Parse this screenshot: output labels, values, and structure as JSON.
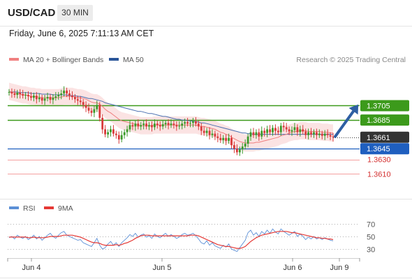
{
  "header": {
    "symbol": "USD/CAD",
    "timeframe": "30 MIN",
    "datetime": "Friday, June 6, 2025 7:11:13 AM CET"
  },
  "legend": {
    "ma20_label": "MA 20 + Bollinger Bands",
    "ma50_label": "MA 50",
    "ma20_color": "#f08080",
    "ma50_color": "#2a5599",
    "credit": "Research © 2025 Trading Central"
  },
  "rsi_legend": {
    "rsi_label": "RSI",
    "ma9_label": "9MA",
    "rsi_color": "#5b8fd6",
    "ma9_color": "#e53935"
  },
  "chart_data": [
    {
      "type": "candlestick",
      "title": "USD/CAD 30 MIN",
      "ylim": [
        1.3585,
        1.3755
      ],
      "current_price": 1.3661,
      "levels": [
        {
          "value": 1.3705,
          "label": "1.3705",
          "kind": "resistance",
          "color": "#3c9a1b"
        },
        {
          "value": 1.3685,
          "label": "1.3685",
          "kind": "resistance",
          "color": "#3c9a1b"
        },
        {
          "value": 1.3661,
          "label": "1.3661",
          "kind": "last",
          "color": "#333333"
        },
        {
          "value": 1.3645,
          "label": "1.3645",
          "kind": "pivot",
          "color": "#1f5fbf"
        },
        {
          "value": 1.363,
          "label": "1.3630",
          "kind": "support",
          "color": "#d32f2f"
        },
        {
          "value": 1.361,
          "label": "1.3610",
          "kind": "support",
          "color": "#d32f2f"
        }
      ],
      "x_ticks": [
        "Jun 4",
        "Jun 5",
        "Jun 6",
        "Jun 9"
      ],
      "closes": [
        1.3724,
        1.3722,
        1.372,
        1.3723,
        1.3721,
        1.3719,
        1.372,
        1.3718,
        1.3716,
        1.3719,
        1.3714,
        1.3716,
        1.3712,
        1.3715,
        1.3717,
        1.3713,
        1.3716,
        1.3718,
        1.372,
        1.3722,
        1.3726,
        1.3722,
        1.3719,
        1.3717,
        1.3714,
        1.3712,
        1.371,
        1.3706,
        1.3702,
        1.3698,
        1.3695,
        1.37,
        1.3706,
        1.3688,
        1.3672,
        1.3665,
        1.3668,
        1.3672,
        1.3666,
        1.3664,
        1.3658,
        1.3664,
        1.3668,
        1.3672,
        1.3678,
        1.3676,
        1.368,
        1.3676,
        1.3678,
        1.368,
        1.3676,
        1.3678,
        1.3675,
        1.368,
        1.3678,
        1.3676,
        1.3679,
        1.3681,
        1.3678,
        1.368,
        1.3678,
        1.3676,
        1.3677,
        1.368,
        1.3682,
        1.368,
        1.3681,
        1.3683,
        1.368,
        1.3676,
        1.367,
        1.3667,
        1.367,
        1.3664,
        1.3666,
        1.3662,
        1.366,
        1.3657,
        1.366,
        1.3656,
        1.366,
        1.365,
        1.3645,
        1.364,
        1.3644,
        1.3648,
        1.3652,
        1.3662,
        1.3668,
        1.3664,
        1.3668,
        1.3662,
        1.367,
        1.3667,
        1.3672,
        1.3668,
        1.3674,
        1.367,
        1.3668,
        1.3677,
        1.3675,
        1.3672,
        1.3669,
        1.3671,
        1.3675,
        1.3668,
        1.3672,
        1.3669,
        1.3664,
        1.3668,
        1.3665,
        1.3668,
        1.3664,
        1.3666,
        1.3663,
        1.3666,
        1.3664,
        1.3662,
        1.3661
      ],
      "ma20": [
        1.3725,
        1.3724,
        1.3723,
        1.3722,
        1.3721,
        1.372,
        1.372,
        1.3719,
        1.3718,
        1.3718,
        1.3717,
        1.3717,
        1.3716,
        1.3716,
        1.3716,
        1.3716,
        1.3716,
        1.3716,
        1.3716,
        1.3717,
        1.3718,
        1.3718,
        1.3718,
        1.3718,
        1.3717,
        1.3716,
        1.3716,
        1.3715,
        1.3714,
        1.3712,
        1.371,
        1.3709,
        1.3709,
        1.3707,
        1.3704,
        1.37,
        1.3697,
        1.3695,
        1.3692,
        1.3689,
        1.3686,
        1.3684,
        1.3683,
        1.3682,
        1.3681,
        1.368,
        1.3679,
        1.3678,
        1.3677,
        1.3677,
        1.3677,
        1.3677,
        1.3677,
        1.3678,
        1.3678,
        1.3678,
        1.3678,
        1.3678,
        1.3678,
        1.3678,
        1.3678,
        1.3678,
        1.3678,
        1.3678,
        1.3678,
        1.3678,
        1.3678,
        1.3678,
        1.3678,
        1.3677,
        1.3676,
        1.3676,
        1.3675,
        1.3674,
        1.3673,
        1.3672,
        1.367,
        1.3668,
        1.3667,
        1.3665,
        1.3664,
        1.3661,
        1.3659,
        1.3657,
        1.3655,
        1.3654,
        1.3653,
        1.3653,
        1.3653,
        1.3653,
        1.3654,
        1.3654,
        1.3655,
        1.3656,
        1.3657,
        1.3658,
        1.3659,
        1.366,
        1.3661,
        1.3663,
        1.3664,
        1.3665,
        1.3667,
        1.3668,
        1.3669,
        1.3669,
        1.367,
        1.367,
        1.367,
        1.3669,
        1.3669,
        1.3669,
        1.3669,
        1.3669,
        1.3668,
        1.3668,
        1.3668,
        1.3667,
        1.3667
      ],
      "bb_width": 0.0012,
      "ma50": [
        1.3724,
        1.3724,
        1.3724,
        1.3724,
        1.3723,
        1.3723,
        1.3723,
        1.3723,
        1.3722,
        1.3722,
        1.3722,
        1.3722,
        1.3721,
        1.3721,
        1.3721,
        1.3721,
        1.372,
        1.372,
        1.372,
        1.372,
        1.372,
        1.372,
        1.3719,
        1.3719,
        1.3719,
        1.3718,
        1.3718,
        1.3717,
        1.3716,
        1.3715,
        1.3715,
        1.3714,
        1.3713,
        1.3712,
        1.3711,
        1.3709,
        1.3708,
        1.3707,
        1.3706,
        1.3705,
        1.3704,
        1.3703,
        1.3702,
        1.3701,
        1.37,
        1.3699,
        1.3698,
        1.3697,
        1.3697,
        1.3696,
        1.3695,
        1.3694,
        1.3694,
        1.3693,
        1.3692,
        1.3691,
        1.369,
        1.369,
        1.3689,
        1.3688,
        1.3687,
        1.3686,
        1.3686,
        1.3685,
        1.3685,
        1.3684,
        1.3684,
        1.3683,
        1.3683,
        1.3682,
        1.3681,
        1.3681,
        1.368,
        1.3679,
        1.3678,
        1.3677,
        1.3676,
        1.3675,
        1.3674,
        1.3673,
        1.3672,
        1.3671,
        1.367,
        1.3669,
        1.3668,
        1.3667,
        1.3667,
        1.3666,
        1.3666,
        1.3665,
        1.3665,
        1.3665,
        1.3665,
        1.3665,
        1.3665,
        1.3665,
        1.3665,
        1.3665,
        1.3665,
        1.3665,
        1.3665,
        1.3665,
        1.3665,
        1.3665,
        1.3665,
        1.3665,
        1.3665,
        1.3665,
        1.3665,
        1.3665,
        1.3665,
        1.3665,
        1.3665,
        1.3665,
        1.3665,
        1.3665,
        1.3665,
        1.3665,
        1.3665
      ]
    },
    {
      "type": "line",
      "title": "RSI",
      "ylim": [
        20,
        80
      ],
      "y_ticks": [
        70,
        50,
        30
      ],
      "series": [
        {
          "name": "RSI",
          "color": "#5b8fd6",
          "values": [
            48,
            50,
            46,
            52,
            49,
            47,
            50,
            45,
            48,
            52,
            46,
            50,
            44,
            48,
            52,
            55,
            50,
            47,
            52,
            56,
            58,
            52,
            50,
            48,
            46,
            44,
            45,
            40,
            38,
            36,
            34,
            40,
            47,
            36,
            30,
            32,
            38,
            42,
            36,
            40,
            34,
            40,
            44,
            48,
            53,
            50,
            55,
            49,
            52,
            54,
            49,
            51,
            47,
            54,
            50,
            48,
            52,
            55,
            50,
            53,
            50,
            47,
            49,
            53,
            55,
            52,
            53,
            55,
            51,
            46,
            40,
            38,
            43,
            36,
            40,
            35,
            33,
            31,
            36,
            33,
            38,
            30,
            28,
            26,
            32,
            38,
            44,
            56,
            60,
            52,
            56,
            50,
            58,
            54,
            60,
            55,
            62,
            57,
            54,
            62,
            58,
            55,
            52,
            55,
            58,
            50,
            54,
            50,
            45,
            49,
            46,
            50,
            46,
            48,
            45,
            48,
            46,
            44,
            43
          ]
        },
        {
          "name": "9MA",
          "color": "#e53935",
          "values": [
            49,
            49,
            49,
            49,
            49,
            49,
            49,
            48,
            48,
            49,
            48,
            48,
            48,
            48,
            49,
            50,
            50,
            50,
            50,
            51,
            52,
            52,
            52,
            52,
            51,
            50,
            49,
            47,
            45,
            43,
            41,
            40,
            40,
            39,
            37,
            36,
            36,
            36,
            36,
            37,
            36,
            37,
            39,
            40,
            42,
            44,
            47,
            49,
            51,
            52,
            52,
            52,
            51,
            51,
            51,
            51,
            51,
            51,
            51,
            51,
            51,
            51,
            51,
            51,
            51,
            51,
            52,
            52,
            52,
            51,
            49,
            47,
            45,
            43,
            41,
            39,
            37,
            36,
            35,
            34,
            34,
            33,
            32,
            31,
            31,
            32,
            34,
            38,
            42,
            45,
            48,
            50,
            52,
            53,
            54,
            55,
            56,
            57,
            58,
            58,
            58,
            58,
            57,
            56,
            56,
            55,
            54,
            53,
            52,
            51,
            50,
            49,
            48,
            48,
            47,
            47,
            46,
            46,
            45
          ]
        }
      ]
    }
  ]
}
